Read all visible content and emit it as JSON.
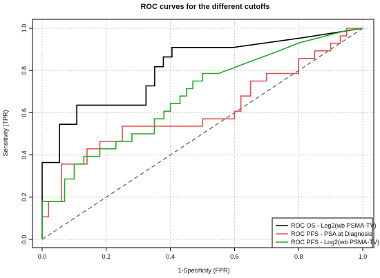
{
  "chart_data": {
    "type": "line",
    "title": "ROC curves for the different cutoffs",
    "xlabel": "1-Specificity (FPR)",
    "ylabel": "Sensitivity (TPR)",
    "xlim": [
      0,
      1
    ],
    "ylim": [
      0,
      1
    ],
    "xticks": [
      "0.0",
      "0.2",
      "0.4",
      "0.6",
      "0.8",
      "1.0"
    ],
    "yticks": [
      "0.0",
      "0.2",
      "0.4",
      "0.6",
      "0.8",
      "1.0"
    ],
    "grid": true,
    "legend_position": "bottom-right",
    "reference_line": {
      "style": "dashed",
      "color": "#555555",
      "from": [
        0,
        0
      ],
      "to": [
        1,
        1
      ]
    },
    "series": [
      {
        "name": "ROC OS - Log2(wb PSMA-TV)",
        "color": "#000000",
        "x": [
          0.0,
          0.0,
          0.0,
          0.054,
          0.054,
          0.108,
          0.108,
          0.324,
          0.324,
          0.351,
          0.351,
          0.378,
          0.378,
          0.405,
          0.405,
          0.595,
          0.595,
          0.811,
          1.0
        ],
        "y": [
          0.0,
          0.182,
          0.364,
          0.364,
          0.545,
          0.545,
          0.636,
          0.636,
          0.727,
          0.727,
          0.818,
          0.818,
          0.864,
          0.864,
          0.909,
          0.909,
          0.909,
          0.955,
          1.0
        ]
      },
      {
        "name": "ROC PFS - PSA at Diagnosis",
        "color": "#e05050",
        "x": [
          0.0,
          0.0,
          0.0,
          0.02,
          0.02,
          0.06,
          0.06,
          0.14,
          0.14,
          0.18,
          0.18,
          0.2,
          0.2,
          0.25,
          0.25,
          0.5,
          0.5,
          0.55,
          0.6,
          0.6,
          0.62,
          0.62,
          0.65,
          0.65,
          0.7,
          0.7,
          0.8,
          0.8,
          0.85,
          0.85,
          0.9,
          0.9,
          0.93,
          0.93,
          0.95,
          0.95,
          1.0
        ],
        "y": [
          0.0,
          0.107,
          0.107,
          0.107,
          0.179,
          0.179,
          0.357,
          0.357,
          0.429,
          0.429,
          0.464,
          0.464,
          0.464,
          0.464,
          0.536,
          0.536,
          0.571,
          0.571,
          0.571,
          0.607,
          0.607,
          0.679,
          0.679,
          0.75,
          0.75,
          0.786,
          0.786,
          0.857,
          0.857,
          0.893,
          0.893,
          0.929,
          0.929,
          0.964,
          0.964,
          1.0,
          1.0
        ]
      },
      {
        "name": "ROC PFS - Log2(wb PSMA-TV)",
        "color": "#22aa22",
        "x": [
          0.0,
          0.0,
          0.0,
          0.07,
          0.07,
          0.1,
          0.1,
          0.13,
          0.13,
          0.18,
          0.18,
          0.23,
          0.23,
          0.28,
          0.28,
          0.35,
          0.35,
          0.38,
          0.38,
          0.4,
          0.4,
          0.43,
          0.43,
          0.45,
          0.45,
          0.47,
          0.47,
          0.5,
          0.5,
          0.55,
          0.55,
          0.6,
          0.65,
          0.7,
          0.75,
          0.8,
          0.85,
          0.9,
          0.95,
          1.0
        ],
        "y": [
          0.0,
          0.179,
          0.179,
          0.179,
          0.286,
          0.286,
          0.357,
          0.357,
          0.393,
          0.393,
          0.429,
          0.429,
          0.464,
          0.464,
          0.5,
          0.5,
          0.571,
          0.571,
          0.607,
          0.607,
          0.643,
          0.643,
          0.679,
          0.679,
          0.714,
          0.714,
          0.75,
          0.75,
          0.786,
          0.786,
          0.786,
          0.814,
          0.843,
          0.871,
          0.9,
          0.93,
          0.95,
          0.97,
          0.99,
          1.0
        ]
      }
    ]
  }
}
